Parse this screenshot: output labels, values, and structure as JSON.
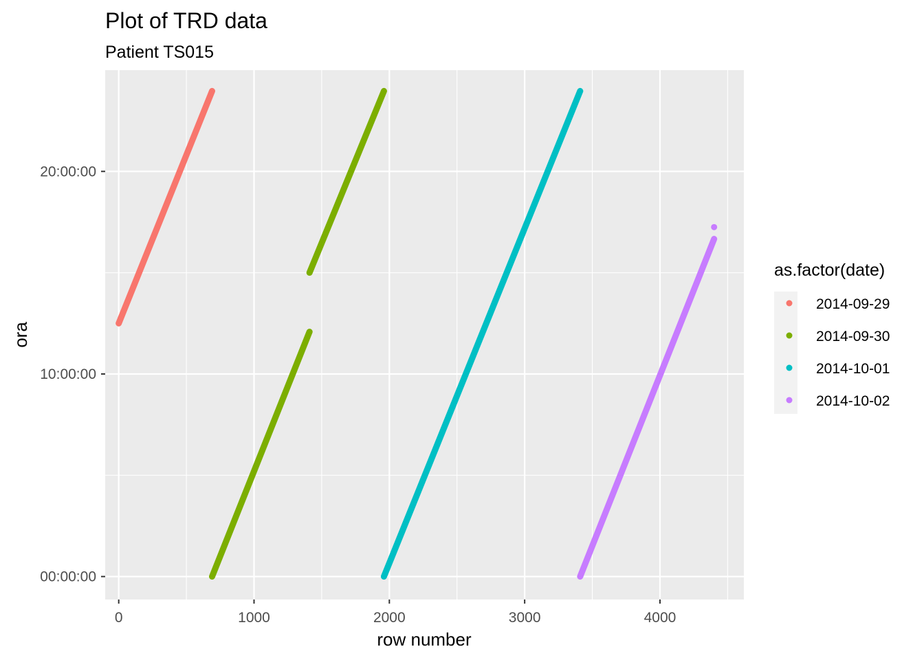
{
  "chart_data": {
    "type": "scatter",
    "title": "Plot of TRD data",
    "subtitle": "Patient TS015",
    "xlabel": "row number",
    "ylabel": "ora",
    "xlim": [
      -100,
      4620
    ],
    "ylim": [
      "-01:08:00",
      "25:00:00"
    ],
    "x_ticks": [
      0,
      1000,
      2000,
      3000,
      4000
    ],
    "y_ticks": [
      "00:00:00",
      "10:00:00",
      "20:00:00"
    ],
    "grid": true,
    "legend_title": "as.factor(date)",
    "legend_position": "right",
    "series": [
      {
        "name": "2014-09-29",
        "color": "#F8766D",
        "segments": [
          {
            "x": [
              0,
              690
            ],
            "y": [
              "12:30:00",
              "23:58:00"
            ]
          }
        ]
      },
      {
        "name": "2014-09-30",
        "color": "#7CAE00",
        "segments": [
          {
            "x": [
              690,
              1410
            ],
            "y": [
              "00:00:00",
              "12:05:00"
            ]
          },
          {
            "x": [
              1410,
              1960
            ],
            "y": [
              "15:00:00",
              "23:58:00"
            ]
          }
        ]
      },
      {
        "name": "2014-10-01",
        "color": "#00BFC4",
        "segments": [
          {
            "x": [
              1960,
              3410
            ],
            "y": [
              "00:00:00",
              "23:58:00"
            ]
          }
        ]
      },
      {
        "name": "2014-10-02",
        "color": "#C77CFF",
        "segments": [
          {
            "x": [
              3410,
              4400
            ],
            "y": [
              "00:00:00",
              "16:40:00"
            ]
          }
        ],
        "points": [
          {
            "x": 4400,
            "y": "17:15:00"
          }
        ]
      }
    ]
  }
}
